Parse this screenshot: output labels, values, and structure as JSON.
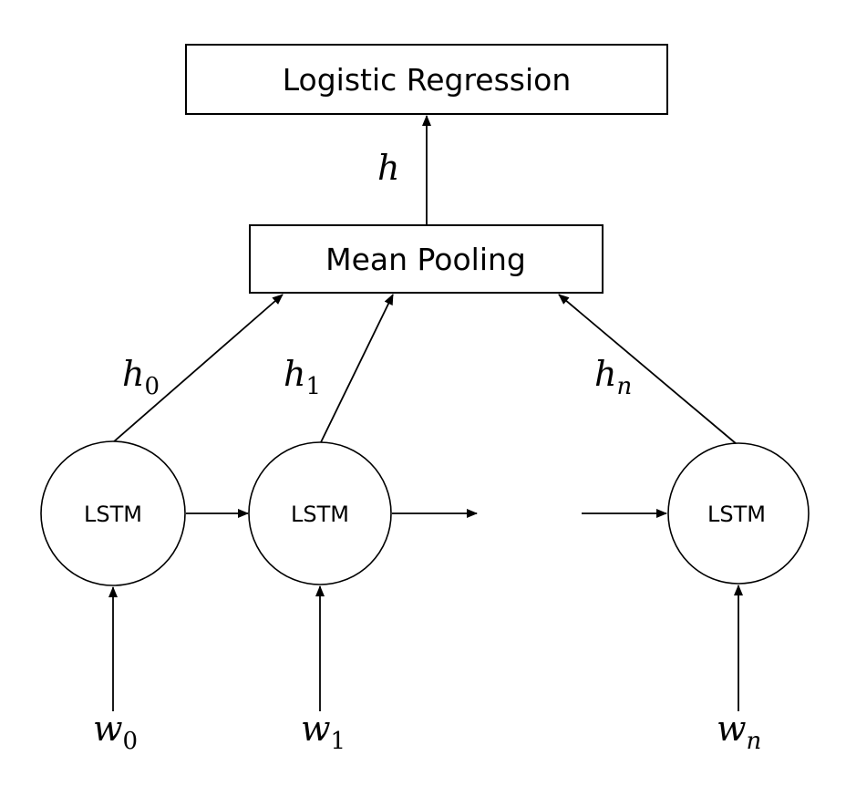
{
  "diagram": {
    "boxes": {
      "logistic_regression": "Logistic Regression",
      "mean_pooling": "Mean Pooling"
    },
    "pooled_output": {
      "symbol": "h"
    },
    "lstm_nodes": [
      {
        "label": "LSTM",
        "hidden": {
          "symbol": "h",
          "index": "0"
        },
        "input": {
          "symbol": "w",
          "index": "0"
        }
      },
      {
        "label": "LSTM",
        "hidden": {
          "symbol": "h",
          "index": "1"
        },
        "input": {
          "symbol": "w",
          "index": "1"
        }
      },
      {
        "label": "LSTM",
        "hidden": {
          "symbol": "h",
          "index": "n"
        },
        "input": {
          "symbol": "w",
          "index": "n"
        }
      }
    ]
  }
}
